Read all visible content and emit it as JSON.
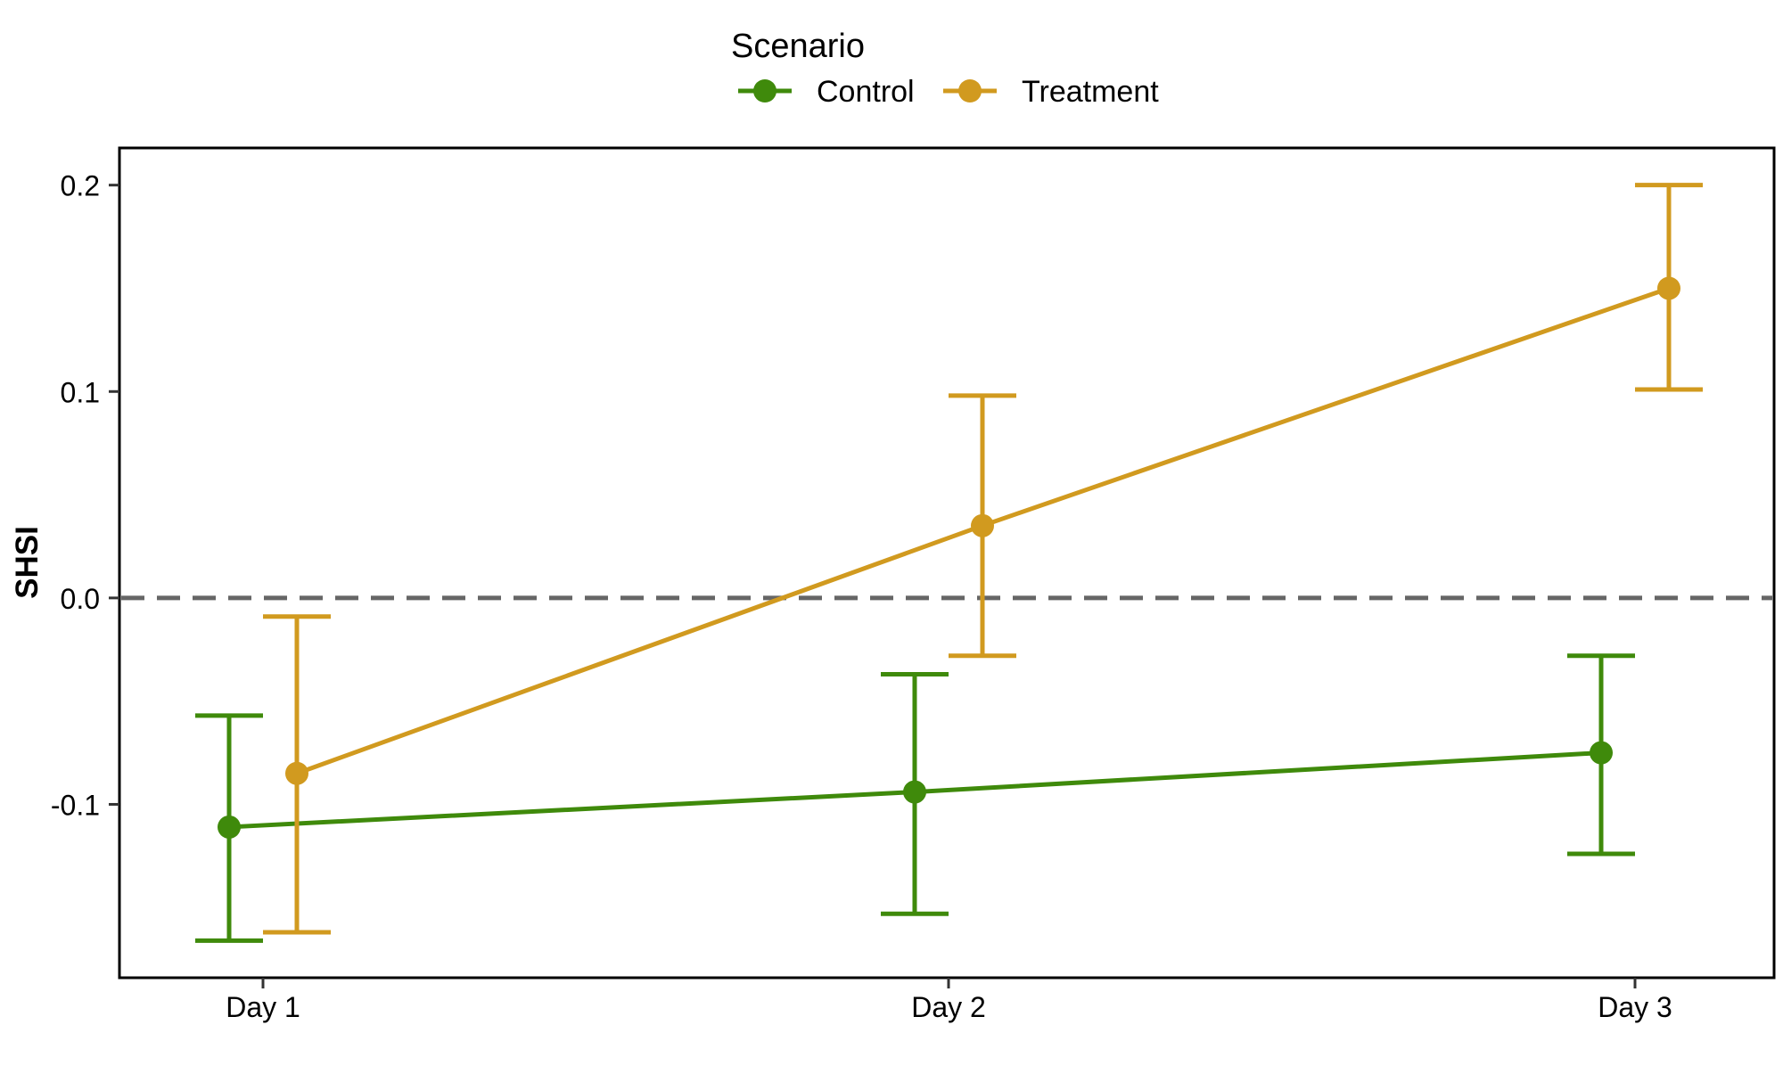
{
  "chart_data": {
    "type": "line",
    "title": "",
    "xlabel": "",
    "ylabel": "SHSI",
    "categories": [
      "Day 1",
      "Day 2",
      "Day 3"
    ],
    "ylim": [
      -0.184,
      0.218
    ],
    "yticks": [
      -0.1,
      0.0,
      0.1,
      0.2
    ],
    "ytick_labels": [
      "-0.1",
      "0.0",
      "0.1",
      "0.2"
    ],
    "reference_line": {
      "y": 0.0,
      "style": "dashed",
      "color": "#666666"
    },
    "legend": {
      "title": "Scenario",
      "placement": "top-center"
    },
    "grid": false,
    "series": [
      {
        "name": "Control",
        "color": "#3f8a0b",
        "values": [
          -0.111,
          -0.094,
          -0.075
        ],
        "error_low": [
          -0.166,
          -0.153,
          -0.124
        ],
        "error_high": [
          -0.057,
          -0.037,
          -0.028
        ]
      },
      {
        "name": "Treatment",
        "color": "#d19a1f",
        "values": [
          -0.085,
          0.035,
          0.15
        ],
        "error_low": [
          -0.162,
          -0.028,
          0.101
        ],
        "error_high": [
          -0.009,
          0.098,
          0.2
        ]
      }
    ]
  }
}
